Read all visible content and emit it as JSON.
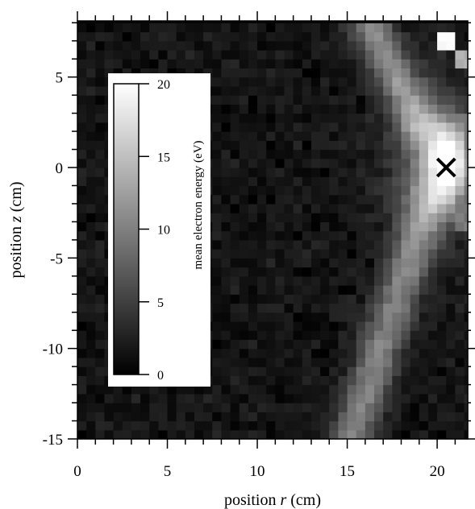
{
  "chart_data": {
    "type": "heatmap",
    "title": "",
    "xlabel": {
      "prefix": "position ",
      "var": "r",
      "suffix": " (cm)"
    },
    "ylabel": {
      "prefix": "position ",
      "var": "z",
      "suffix": " (cm)"
    },
    "xlim": [
      0,
      21.7
    ],
    "ylim": [
      -15,
      8.1
    ],
    "x_ticks": [
      0,
      5,
      10,
      15,
      20
    ],
    "y_ticks": [
      -15,
      -10,
      -5,
      0,
      5
    ],
    "x_tick_labels": [
      "0",
      "5",
      "10",
      "15",
      "20"
    ],
    "y_tick_labels": [
      "-15",
      "-10",
      "-5",
      "0",
      "5"
    ],
    "x_minor_step": 1,
    "y_minor_step": 1,
    "grid": false,
    "colormap": "grayscale",
    "colorbar": {
      "title": "mean electron energy (eV)",
      "range": [
        0,
        20
      ],
      "ticks": [
        0,
        5,
        10,
        15,
        20
      ],
      "tick_labels": [
        "0",
        "5",
        "10",
        "15",
        "20"
      ],
      "placement": "inside-left"
    },
    "marker": {
      "symbol": "×",
      "r": 20.5,
      "z": 0
    },
    "grid_resolution": {
      "dr": 0.5,
      "dz": 0.5,
      "r_range": [
        0,
        21.5
      ],
      "z_range": [
        -15,
        8
      ]
    },
    "features": {
      "background_energy": 0.6,
      "central_hotspot": {
        "r": 20.6,
        "z": 0.3,
        "peak_energy": 19.5
      },
      "upper_lobe": {
        "from": [
          16.2,
          8.0
        ],
        "to": [
          19.0,
          2.5
        ],
        "energy": 9
      },
      "lower_lobe": {
        "from": [
          19.5,
          -2.0
        ],
        "to": [
          15.2,
          -15.0
        ],
        "energy": 8
      },
      "top_corner_spot": {
        "r": 20.5,
        "z": 7.0,
        "energy": 20
      }
    }
  }
}
